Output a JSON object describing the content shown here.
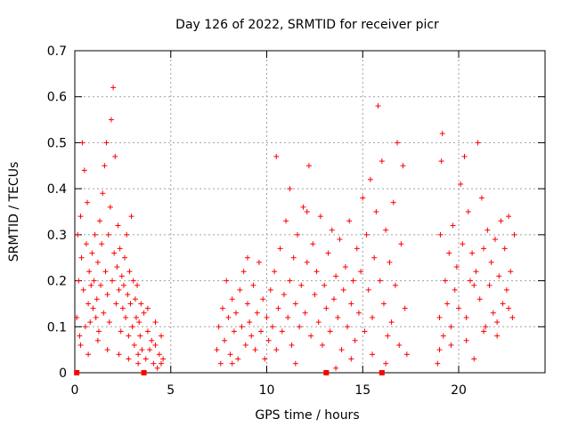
{
  "chart_data": {
    "type": "scatter",
    "title": "Day 126 of 2022, SRMTID for receiver picr",
    "xlabel": "GPS time / hours",
    "ylabel": "SRMTID / TECUs",
    "xlim": [
      0,
      24.5
    ],
    "ylim": [
      0,
      0.7
    ],
    "xticks": [
      0,
      5,
      10,
      15,
      20
    ],
    "xtick_labels": [
      "0",
      "5",
      "10",
      "15",
      "20"
    ],
    "yticks": [
      0,
      0.1,
      0.2,
      0.3,
      0.4,
      0.5,
      0.6,
      0.7
    ],
    "ytick_labels": [
      "0",
      "0.1",
      "0.2",
      "0.3",
      "0.4",
      "0.5",
      "0.6",
      "0.7"
    ],
    "grid": true,
    "marker": "+",
    "color": "#ff0000",
    "series": [
      {
        "name": "SRMTID",
        "points": [
          [
            0.1,
            0.12
          ],
          [
            0.15,
            0.3
          ],
          [
            0.2,
            0.2
          ],
          [
            0.25,
            0.08
          ],
          [
            0.3,
            0.34
          ],
          [
            0.35,
            0.25
          ],
          [
            0.4,
            0.5
          ],
          [
            0.45,
            0.18
          ],
          [
            0.5,
            0.44
          ],
          [
            0.55,
            0.1
          ],
          [
            0.6,
            0.28
          ],
          [
            0.65,
            0.37
          ],
          [
            0.7,
            0.15
          ],
          [
            0.75,
            0.22
          ],
          [
            0.8,
            0.11
          ],
          [
            0.85,
            0.19
          ],
          [
            0.9,
            0.26
          ],
          [
            0.95,
            0.14
          ],
          [
            1.0,
            0.2
          ],
          [
            1.05,
            0.3
          ],
          [
            1.1,
            0.12
          ],
          [
            1.15,
            0.16
          ],
          [
            1.2,
            0.24
          ],
          [
            1.25,
            0.09
          ],
          [
            1.3,
            0.33
          ],
          [
            1.35,
            0.19
          ],
          [
            1.4,
            0.28
          ],
          [
            1.45,
            0.39
          ],
          [
            1.5,
            0.13
          ],
          [
            1.55,
            0.45
          ],
          [
            1.6,
            0.22
          ],
          [
            1.65,
            0.5
          ],
          [
            1.7,
            0.17
          ],
          [
            1.75,
            0.3
          ],
          [
            1.8,
            0.11
          ],
          [
            1.85,
            0.36
          ],
          [
            1.9,
            0.55
          ],
          [
            1.95,
            0.2
          ],
          [
            2.0,
            0.62
          ],
          [
            2.05,
            0.26
          ],
          [
            2.1,
            0.47
          ],
          [
            2.15,
            0.15
          ],
          [
            2.2,
            0.23
          ],
          [
            2.25,
            0.32
          ],
          [
            2.3,
            0.18
          ],
          [
            2.35,
            0.27
          ],
          [
            2.4,
            0.09
          ],
          [
            2.45,
            0.21
          ],
          [
            2.5,
            0.14
          ],
          [
            2.55,
            0.19
          ],
          [
            2.6,
            0.25
          ],
          [
            2.65,
            0.12
          ],
          [
            2.7,
            0.3
          ],
          [
            2.75,
            0.17
          ],
          [
            2.8,
            0.08
          ],
          [
            2.85,
            0.22
          ],
          [
            2.9,
            0.15
          ],
          [
            2.95,
            0.34
          ],
          [
            3.0,
            0.1
          ],
          [
            3.05,
            0.2
          ],
          [
            3.1,
            0.06
          ],
          [
            3.15,
            0.16
          ],
          [
            3.2,
            0.12
          ],
          [
            3.25,
            0.19
          ],
          [
            3.3,
            0.04
          ],
          [
            3.35,
            0.11
          ],
          [
            3.4,
            0.08
          ],
          [
            3.45,
            0.15
          ],
          [
            3.5,
            0.05
          ],
          [
            3.6,
            0.13
          ],
          [
            3.7,
            0.03
          ],
          [
            3.8,
            0.09
          ],
          [
            3.9,
            0.05
          ],
          [
            4.0,
            0.07
          ],
          [
            4.1,
            0.02
          ],
          [
            4.2,
            0.06
          ],
          [
            4.3,
            0.01
          ],
          [
            4.4,
            0.04
          ],
          [
            4.5,
            0.08
          ],
          [
            4.6,
            0.03
          ],
          [
            0.3,
            0.06
          ],
          [
            0.7,
            0.04
          ],
          [
            1.2,
            0.07
          ],
          [
            1.7,
            0.05
          ],
          [
            2.3,
            0.04
          ],
          [
            2.8,
            0.03
          ],
          [
            3.3,
            0.02
          ],
          [
            3.8,
            0.14
          ],
          [
            4.2,
            0.11
          ],
          [
            4.5,
            0.02
          ],
          [
            7.4,
            0.05
          ],
          [
            7.5,
            0.1
          ],
          [
            7.6,
            0.02
          ],
          [
            7.7,
            0.14
          ],
          [
            7.8,
            0.07
          ],
          [
            7.9,
            0.2
          ],
          [
            8.0,
            0.12
          ],
          [
            8.1,
            0.04
          ],
          [
            8.2,
            0.16
          ],
          [
            8.3,
            0.09
          ],
          [
            8.4,
            0.13
          ],
          [
            8.5,
            0.03
          ],
          [
            8.6,
            0.18
          ],
          [
            8.7,
            0.1
          ],
          [
            8.8,
            0.22
          ],
          [
            8.9,
            0.06
          ],
          [
            9.0,
            0.15
          ],
          [
            9.1,
            0.11
          ],
          [
            9.2,
            0.08
          ],
          [
            9.3,
            0.19
          ],
          [
            9.4,
            0.05
          ],
          [
            9.5,
            0.13
          ],
          [
            9.6,
            0.24
          ],
          [
            9.7,
            0.09
          ],
          [
            9.8,
            0.16
          ],
          [
            9.9,
            0.03
          ],
          [
            10.0,
            0.12
          ],
          [
            10.1,
            0.07
          ],
          [
            10.2,
            0.18
          ],
          [
            10.3,
            0.1
          ],
          [
            10.4,
            0.22
          ],
          [
            10.5,
            0.05
          ],
          [
            10.6,
            0.14
          ],
          [
            10.7,
            0.27
          ],
          [
            10.8,
            0.09
          ],
          [
            10.9,
            0.17
          ],
          [
            11.0,
            0.33
          ],
          [
            11.1,
            0.12
          ],
          [
            11.2,
            0.2
          ],
          [
            11.3,
            0.06
          ],
          [
            11.4,
            0.25
          ],
          [
            11.5,
            0.15
          ],
          [
            11.6,
            0.3
          ],
          [
            11.7,
            0.1
          ],
          [
            11.8,
            0.19
          ],
          [
            11.9,
            0.36
          ],
          [
            12.0,
            0.13
          ],
          [
            12.1,
            0.24
          ],
          [
            12.2,
            0.45
          ],
          [
            12.3,
            0.08
          ],
          [
            12.4,
            0.28
          ],
          [
            12.5,
            0.17
          ],
          [
            12.6,
            0.22
          ],
          [
            12.7,
            0.11
          ],
          [
            12.8,
            0.34
          ],
          [
            12.9,
            0.06
          ],
          [
            13.0,
            0.19
          ],
          [
            13.1,
            0.14
          ],
          [
            13.2,
            0.26
          ],
          [
            13.3,
            0.09
          ],
          [
            13.4,
            0.31
          ],
          [
            13.5,
            0.16
          ],
          [
            13.6,
            0.21
          ],
          [
            13.7,
            0.12
          ],
          [
            13.8,
            0.29
          ],
          [
            13.9,
            0.05
          ],
          [
            14.0,
            0.18
          ],
          [
            14.1,
            0.23
          ],
          [
            14.2,
            0.1
          ],
          [
            14.3,
            0.33
          ],
          [
            14.4,
            0.15
          ],
          [
            14.5,
            0.2
          ],
          [
            14.6,
            0.07
          ],
          [
            14.7,
            0.27
          ],
          [
            14.8,
            0.13
          ],
          [
            14.9,
            0.22
          ],
          [
            15.0,
            0.38
          ],
          [
            15.1,
            0.09
          ],
          [
            15.2,
            0.3
          ],
          [
            15.3,
            0.18
          ],
          [
            15.4,
            0.42
          ],
          [
            15.5,
            0.12
          ],
          [
            15.6,
            0.25
          ],
          [
            15.7,
            0.35
          ],
          [
            15.8,
            0.58
          ],
          [
            15.9,
            0.2
          ],
          [
            16.0,
            0.46
          ],
          [
            16.1,
            0.15
          ],
          [
            16.2,
            0.31
          ],
          [
            16.3,
            0.08
          ],
          [
            16.4,
            0.24
          ],
          [
            16.5,
            0.11
          ],
          [
            16.6,
            0.37
          ],
          [
            16.7,
            0.19
          ],
          [
            16.8,
            0.5
          ],
          [
            16.9,
            0.06
          ],
          [
            17.0,
            0.28
          ],
          [
            17.1,
            0.45
          ],
          [
            17.2,
            0.14
          ],
          [
            17.3,
            0.04
          ],
          [
            10.5,
            0.47
          ],
          [
            11.2,
            0.4
          ],
          [
            12.1,
            0.35
          ],
          [
            9.0,
            0.25
          ],
          [
            8.2,
            0.02
          ],
          [
            13.6,
            0.01
          ],
          [
            15.5,
            0.04
          ],
          [
            16.2,
            0.02
          ],
          [
            14.4,
            0.03
          ],
          [
            11.5,
            0.02
          ],
          [
            18.9,
            0.02
          ],
          [
            19.0,
            0.12
          ],
          [
            19.05,
            0.3
          ],
          [
            19.1,
            0.46
          ],
          [
            19.15,
            0.52
          ],
          [
            19.2,
            0.08
          ],
          [
            19.3,
            0.2
          ],
          [
            19.4,
            0.15
          ],
          [
            19.5,
            0.26
          ],
          [
            19.6,
            0.1
          ],
          [
            19.7,
            0.32
          ],
          [
            19.8,
            0.18
          ],
          [
            19.9,
            0.23
          ],
          [
            20.0,
            0.14
          ],
          [
            20.1,
            0.41
          ],
          [
            20.2,
            0.28
          ],
          [
            20.3,
            0.47
          ],
          [
            20.4,
            0.12
          ],
          [
            20.5,
            0.35
          ],
          [
            20.6,
            0.2
          ],
          [
            20.7,
            0.26
          ],
          [
            20.8,
            0.03
          ],
          [
            20.9,
            0.22
          ],
          [
            21.0,
            0.5
          ],
          [
            21.1,
            0.16
          ],
          [
            21.2,
            0.38
          ],
          [
            21.3,
            0.27
          ],
          [
            21.4,
            0.1
          ],
          [
            21.5,
            0.31
          ],
          [
            21.6,
            0.19
          ],
          [
            21.7,
            0.24
          ],
          [
            21.8,
            0.13
          ],
          [
            21.9,
            0.29
          ],
          [
            22.0,
            0.08
          ],
          [
            22.1,
            0.21
          ],
          [
            22.2,
            0.33
          ],
          [
            22.3,
            0.15
          ],
          [
            22.4,
            0.27
          ],
          [
            22.5,
            0.18
          ],
          [
            22.6,
            0.34
          ],
          [
            22.7,
            0.22
          ],
          [
            22.8,
            0.12
          ],
          [
            22.9,
            0.3
          ],
          [
            19.0,
            0.05
          ],
          [
            19.6,
            0.06
          ],
          [
            20.4,
            0.07
          ],
          [
            21.3,
            0.09
          ],
          [
            22.0,
            0.11
          ],
          [
            22.6,
            0.14
          ],
          [
            20.8,
            0.19
          ]
        ]
      }
    ],
    "zero_markers_x": [
      0.1,
      3.6,
      13.1,
      16.0
    ]
  }
}
